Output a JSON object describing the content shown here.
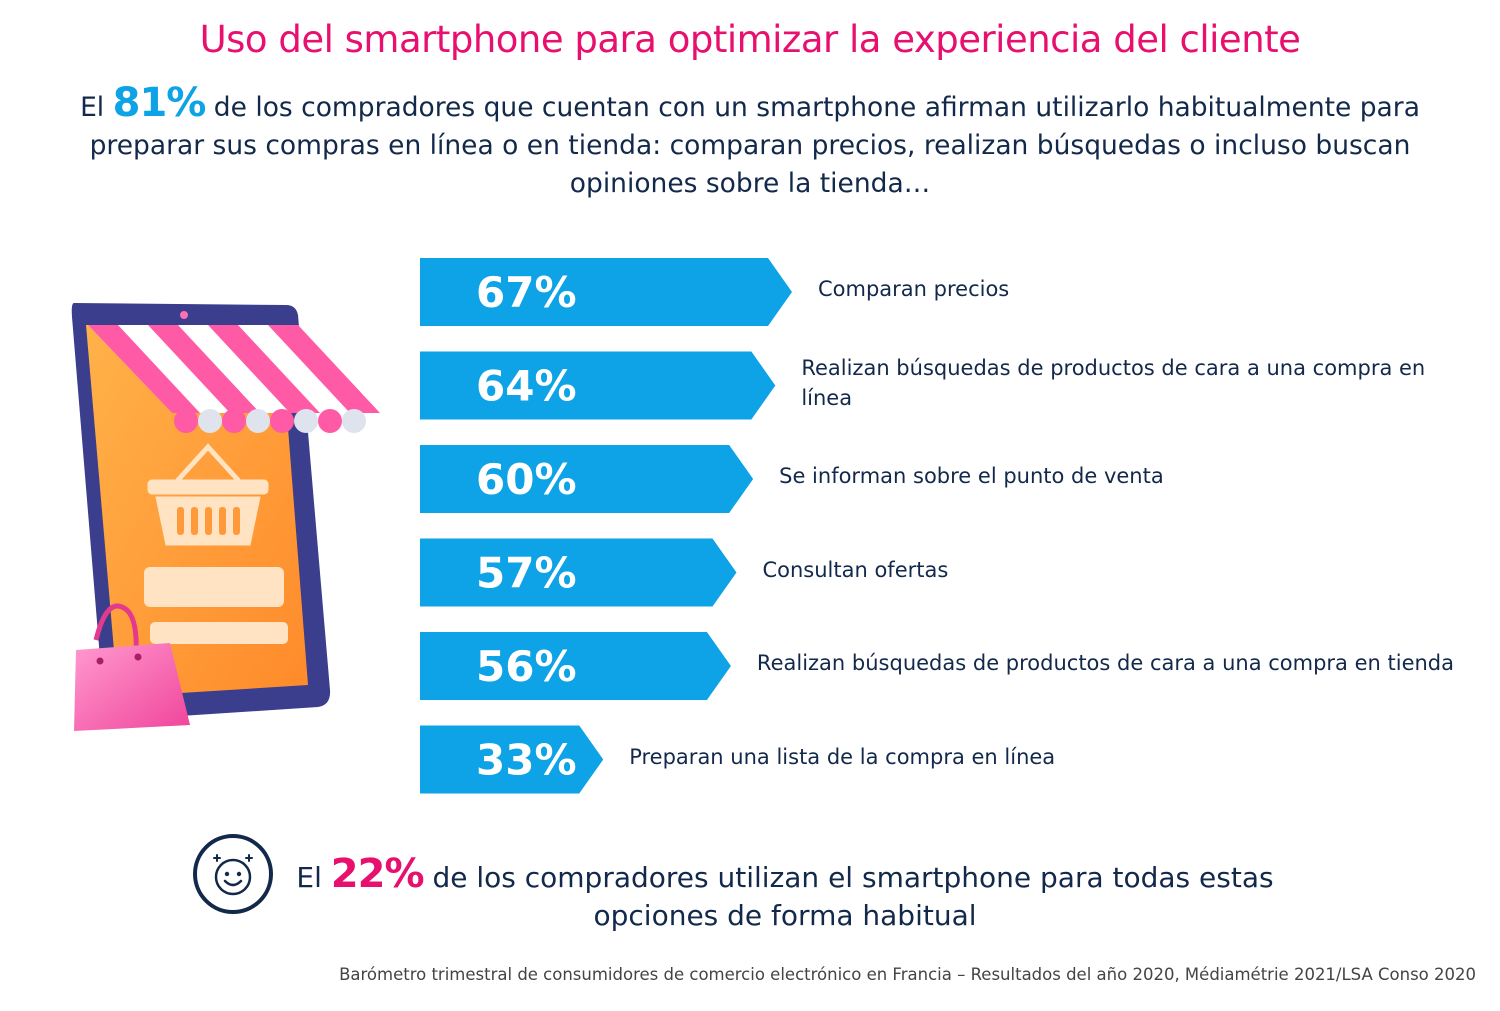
{
  "title": "Uso del smartphone para optimizar la experiencia del cliente",
  "intro": {
    "prefix": "El",
    "highlight": "81%",
    "text": "de los compradores que cuentan con un smartphone afirman utilizarlo habitualmente para preparar sus compras en línea o en tienda: comparan precios, realizan búsquedas o incluso buscan opiniones sobre la tienda…"
  },
  "chart_data": {
    "type": "bar",
    "orientation": "horizontal",
    "title": "",
    "categories": [
      "Comparan precios",
      "Realizan búsquedas de productos de cara a una compra en línea",
      "Se informan sobre el punto de venta",
      "Consultan ofertas",
      "Realizan búsquedas de productos de cara a una compra en tienda",
      "Preparan una lista de la compra en línea"
    ],
    "values": [
      67,
      64,
      60,
      57,
      56,
      33
    ],
    "value_labels": [
      "67%",
      "64%",
      "60%",
      "57%",
      "56%",
      "33%"
    ],
    "xlim": [
      0,
      100
    ],
    "grid": false,
    "bar_color": "#0ea2e6"
  },
  "summary": {
    "prefix": "El",
    "highlight": "22%",
    "text": "de los compradores utilizan el smartphone para todas estas opciones de forma habitual"
  },
  "source": "Barómetro trimestral de consumidores de comercio electrónico en Francia – Resultados del año 2020, Médiamétrie 2021/LSA Conso 2020",
  "icons": [
    "smartphone-shop-icon",
    "shopping-bag-icon",
    "basket-icon",
    "smiley-icon"
  ],
  "colors": {
    "accent_pink": "#e8106f",
    "accent_blue": "#0ea2e6",
    "text": "#13294b"
  }
}
